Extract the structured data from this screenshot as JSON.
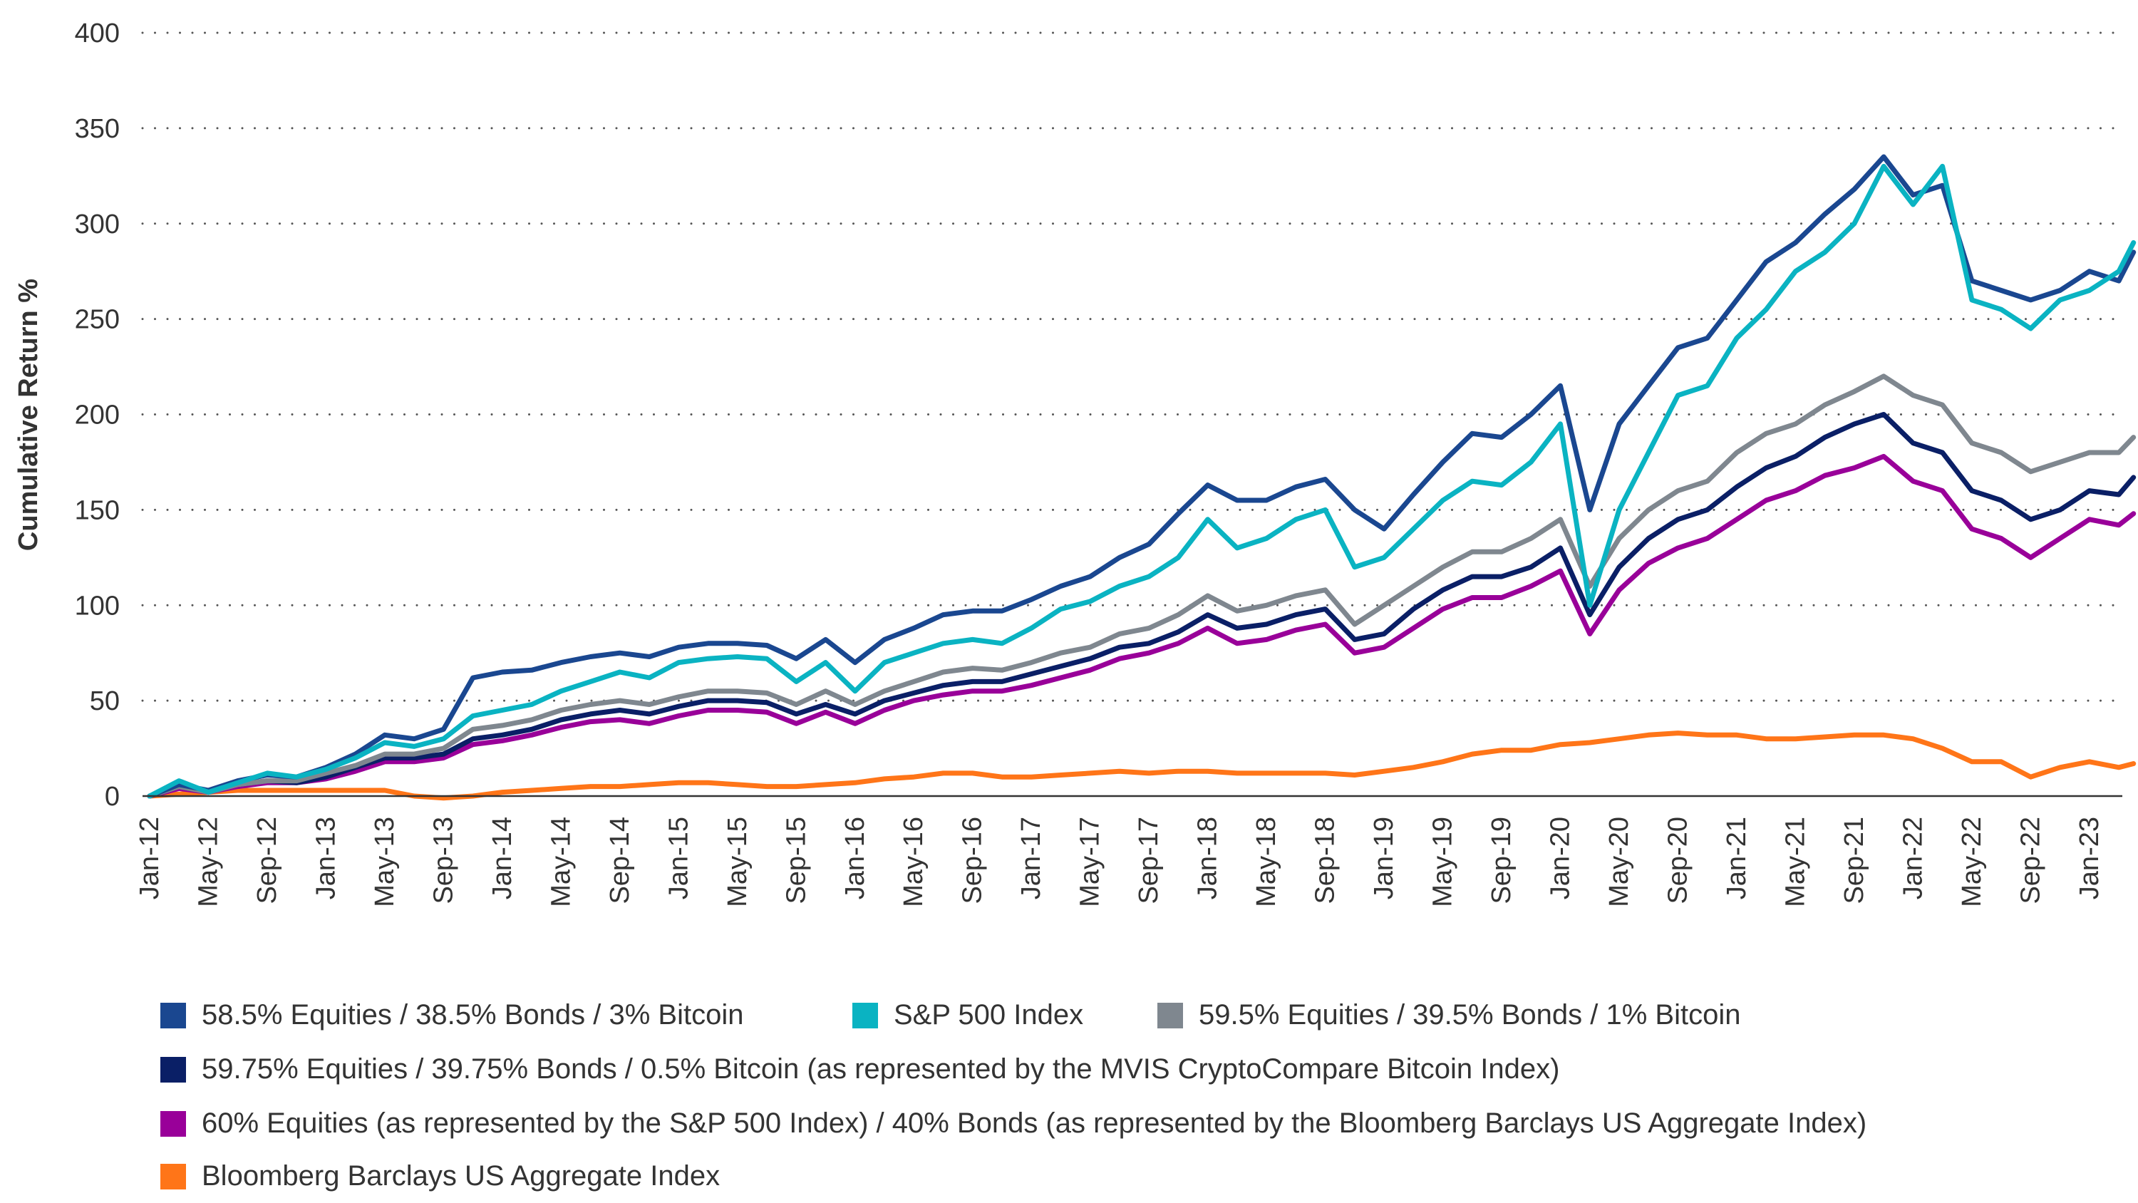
{
  "chart_data": {
    "type": "line",
    "title": "",
    "xlabel": "",
    "ylabel": "Cumulative Return %",
    "ylim": [
      0,
      400
    ],
    "yticks": [
      "0",
      "50",
      "100",
      "150",
      "200",
      "250",
      "300",
      "350",
      "400"
    ],
    "grid": "horizontal dotted",
    "legend_position": "bottom",
    "xticks": [
      "Jan-12",
      "May-12",
      "Sep-12",
      "Jan-13",
      "May-13",
      "Sep-13",
      "Jan-14",
      "May-14",
      "Sep-14",
      "Jan-15",
      "May-15",
      "Sep-15",
      "Jan-16",
      "May-16",
      "Sep-16",
      "Jan-17",
      "May-17",
      "Sep-17",
      "Jan-18",
      "May-18",
      "Sep-18",
      "Jan-19",
      "May-19",
      "Sep-19",
      "Jan-20",
      "May-20",
      "Sep-20",
      "Jan-21",
      "May-21",
      "Sep-21",
      "Jan-22",
      "May-22",
      "Sep-22",
      "Jan-23"
    ],
    "x": [
      "2012-01",
      "2012-03",
      "2012-05",
      "2012-07",
      "2012-09",
      "2012-11",
      "2013-01",
      "2013-03",
      "2013-05",
      "2013-07",
      "2013-09",
      "2013-11",
      "2014-01",
      "2014-03",
      "2014-05",
      "2014-07",
      "2014-09",
      "2014-11",
      "2015-01",
      "2015-03",
      "2015-05",
      "2015-07",
      "2015-09",
      "2015-11",
      "2016-01",
      "2016-03",
      "2016-05",
      "2016-07",
      "2016-09",
      "2016-11",
      "2017-01",
      "2017-03",
      "2017-05",
      "2017-07",
      "2017-09",
      "2017-11",
      "2018-01",
      "2018-03",
      "2018-05",
      "2018-07",
      "2018-09",
      "2018-11",
      "2019-01",
      "2019-03",
      "2019-05",
      "2019-07",
      "2019-09",
      "2019-11",
      "2020-01",
      "2020-03",
      "2020-05",
      "2020-07",
      "2020-09",
      "2020-11",
      "2021-01",
      "2021-03",
      "2021-05",
      "2021-07",
      "2021-09",
      "2021-11",
      "2022-01",
      "2022-03",
      "2022-05",
      "2022-07",
      "2022-09",
      "2022-11",
      "2023-01",
      "2023-03",
      "2023-04"
    ],
    "series": [
      {
        "name": "Bloomberg Barclays US Aggregate Index",
        "color": "#ff7518",
        "values": [
          0,
          1,
          2,
          3,
          3,
          3,
          3,
          3,
          3,
          0,
          -1,
          0,
          2,
          3,
          4,
          5,
          5,
          6,
          7,
          7,
          6,
          5,
          5,
          6,
          7,
          9,
          10,
          12,
          12,
          10,
          10,
          11,
          12,
          13,
          12,
          13,
          13,
          12,
          12,
          12,
          12,
          11,
          13,
          15,
          18,
          22,
          24,
          24,
          27,
          28,
          30,
          32,
          33,
          32,
          32,
          30,
          30,
          31,
          32,
          32,
          30,
          25,
          18,
          18,
          10,
          15,
          18,
          15,
          17
        ]
      },
      {
        "name": "60% Equities (as represented by the S&P 500 Index) / 40% Bonds (as represented by the Bloomberg Barclays US Aggregate Index)",
        "color": "#990099",
        "values": [
          0,
          4,
          2,
          5,
          7,
          7,
          9,
          13,
          18,
          18,
          20,
          27,
          29,
          32,
          36,
          39,
          40,
          38,
          42,
          45,
          45,
          44,
          38,
          44,
          38,
          45,
          50,
          53,
          55,
          55,
          58,
          62,
          66,
          72,
          75,
          80,
          88,
          80,
          82,
          87,
          90,
          75,
          78,
          88,
          98,
          104,
          104,
          110,
          118,
          85,
          108,
          122,
          130,
          135,
          145,
          155,
          160,
          168,
          172,
          178,
          165,
          160,
          140,
          135,
          125,
          135,
          145,
          142,
          148
        ]
      },
      {
        "name": "59.75% Equities / 39.75% Bonds / 0.5% Bitcoin (as represented by the MVIS CryptoCompare Bitcoin Index)",
        "color": "#0a1f66",
        "values": [
          0,
          5,
          2,
          6,
          8,
          7,
          10,
          15,
          20,
          20,
          22,
          30,
          32,
          35,
          40,
          43,
          45,
          43,
          47,
          50,
          50,
          49,
          43,
          48,
          43,
          50,
          54,
          58,
          60,
          60,
          64,
          68,
          72,
          78,
          80,
          86,
          95,
          88,
          90,
          95,
          98,
          82,
          85,
          98,
          108,
          115,
          115,
          120,
          130,
          95,
          120,
          135,
          145,
          150,
          162,
          172,
          178,
          188,
          195,
          200,
          185,
          180,
          160,
          155,
          145,
          150,
          160,
          158,
          167
        ]
      },
      {
        "name": "59.5% Equities / 39.5% Bonds / 1% Bitcoin",
        "color": "#7f878f",
        "values": [
          0,
          5,
          2,
          6,
          8,
          8,
          12,
          16,
          22,
          22,
          25,
          35,
          37,
          40,
          45,
          48,
          50,
          48,
          52,
          55,
          55,
          54,
          48,
          55,
          48,
          55,
          60,
          65,
          67,
          66,
          70,
          75,
          78,
          85,
          88,
          95,
          105,
          97,
          100,
          105,
          108,
          90,
          100,
          110,
          120,
          128,
          128,
          135,
          145,
          110,
          135,
          150,
          160,
          165,
          180,
          190,
          195,
          205,
          212,
          220,
          210,
          205,
          185,
          180,
          170,
          175,
          180,
          180,
          188
        ]
      },
      {
        "name": "58.5% Equities / 38.5% Bonds / 3% Bitcoin",
        "color": "#1a4790",
        "values": [
          0,
          6,
          3,
          8,
          11,
          10,
          15,
          22,
          32,
          30,
          35,
          62,
          65,
          66,
          70,
          73,
          75,
          73,
          78,
          80,
          80,
          79,
          72,
          82,
          70,
          82,
          88,
          95,
          97,
          97,
          103,
          110,
          115,
          125,
          132,
          148,
          163,
          155,
          155,
          162,
          166,
          150,
          140,
          158,
          175,
          190,
          188,
          200,
          215,
          150,
          195,
          215,
          235,
          240,
          260,
          280,
          290,
          305,
          318,
          335,
          315,
          320,
          270,
          265,
          260,
          265,
          275,
          270,
          285
        ]
      },
      {
        "name": "S&P 500 Index",
        "color": "#0ab3c2",
        "values": [
          0,
          8,
          2,
          7,
          12,
          10,
          14,
          20,
          28,
          26,
          30,
          42,
          45,
          48,
          55,
          60,
          65,
          62,
          70,
          72,
          73,
          72,
          60,
          70,
          55,
          70,
          75,
          80,
          82,
          80,
          88,
          98,
          102,
          110,
          115,
          125,
          145,
          130,
          135,
          145,
          150,
          120,
          125,
          140,
          155,
          165,
          163,
          175,
          195,
          100,
          150,
          180,
          210,
          215,
          240,
          255,
          275,
          285,
          300,
          330,
          310,
          330,
          260,
          255,
          245,
          260,
          265,
          275,
          290
        ]
      }
    ]
  },
  "legend": [
    {
      "label": "58.5% Equities / 38.5% Bonds / 3% Bitcoin",
      "color": "#1a4790"
    },
    {
      "label": "S&P 500 Index",
      "color": "#0ab3c2"
    },
    {
      "label": "59.5% Equities / 39.5% Bonds / 1% Bitcoin",
      "color": "#7f878f"
    },
    {
      "label": "59.75% Equities / 39.75% Bonds / 0.5% Bitcoin (as represented by the MVIS CryptoCompare Bitcoin Index)",
      "color": "#0a1f66"
    },
    {
      "label": "60% Equities (as represented by the S&P 500 Index) / 40% Bonds (as represented by the Bloomberg Barclays US Aggregate Index)",
      "color": "#990099"
    },
    {
      "label": "Bloomberg Barclays US Aggregate Index",
      "color": "#ff7518"
    }
  ]
}
